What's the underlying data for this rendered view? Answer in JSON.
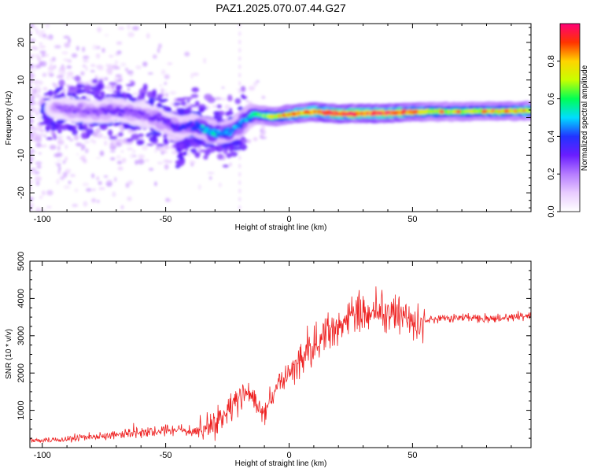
{
  "title": "PAZ1.2025.070.07.44.G27",
  "colors": {
    "snr_line": "#ee2222",
    "colormap": [
      "#ffffff",
      "#e9ccff",
      "#b57cff",
      "#6a1dff",
      "#2233ff",
      "#00ddff",
      "#00ff55",
      "#c8ff00",
      "#ffd400",
      "#ff3300",
      "#ff0077"
    ]
  },
  "chart_data": [
    {
      "type": "heatmap",
      "title": "PAZ1.2025.070.07.44.G27",
      "xlabel": "Height of straight line (km)",
      "ylabel": "Frequency (Hz)",
      "xlim": [
        -105,
        98
      ],
      "ylim": [
        -25,
        25
      ],
      "xticks": [
        -100,
        -50,
        0,
        50
      ],
      "yticks": [
        -20,
        -10,
        0,
        10,
        20
      ],
      "colorbar": {
        "label": "Normalized spectral amplitude",
        "range": [
          0.0,
          1.0
        ],
        "ticks": [
          0.0,
          0.2,
          0.4,
          0.6,
          0.8
        ],
        "tick_labels": [
          "0.0",
          "0.2",
          "0.4",
          "0.6",
          "0.8"
        ]
      },
      "ridge": {
        "x": [
          -100,
          -90,
          -80,
          -70,
          -60,
          -50,
          -45,
          -40,
          -35,
          -30,
          -25,
          -20,
          -15,
          -10,
          -5,
          0,
          5,
          10,
          20,
          30,
          40,
          50,
          60,
          70,
          80,
          90,
          98
        ],
        "frequency": [
          3,
          2,
          1.5,
          2,
          1,
          -1,
          -3,
          -2,
          -3,
          -4,
          -4,
          -2,
          1,
          0.5,
          0.3,
          0.8,
          1.2,
          1.6,
          1.0,
          1.1,
          1.2,
          1.5,
          1.6,
          1.6,
          1.7,
          1.7,
          1.8
        ],
        "amplitude": [
          0.15,
          0.25,
          0.25,
          0.3,
          0.25,
          0.3,
          0.35,
          0.35,
          0.5,
          0.5,
          0.45,
          0.45,
          0.5,
          0.65,
          0.75,
          0.8,
          0.85,
          0.9,
          0.95,
          0.9,
          0.95,
          0.85,
          0.7,
          0.7,
          0.75,
          0.75,
          0.8
        ]
      }
    },
    {
      "type": "line",
      "xlabel": "Height of straight line (km)",
      "ylabel": "SNR (10 * v/v)",
      "xlim": [
        -105,
        98
      ],
      "ylim": [
        0,
        5000
      ],
      "xticks": [
        -100,
        -50,
        0,
        50
      ],
      "yticks": [
        1000,
        2000,
        3000,
        4000,
        5000
      ],
      "x": [
        -105,
        -95,
        -85,
        -75,
        -65,
        -55,
        -45,
        -35,
        -30,
        -25,
        -20,
        -15,
        -12,
        -10,
        -5,
        0,
        5,
        10,
        15,
        20,
        25,
        30,
        35,
        40,
        45,
        50,
        55,
        60,
        70,
        80,
        90,
        98
      ],
      "y": [
        180,
        190,
        250,
        320,
        380,
        420,
        460,
        460,
        600,
        1000,
        1350,
        1400,
        1100,
        1000,
        1600,
        2000,
        2400,
        2800,
        3000,
        3300,
        3500,
        3700,
        3700,
        3600,
        3550,
        3300,
        3400,
        3450,
        3500,
        3450,
        3500,
        3550
      ]
    }
  ]
}
